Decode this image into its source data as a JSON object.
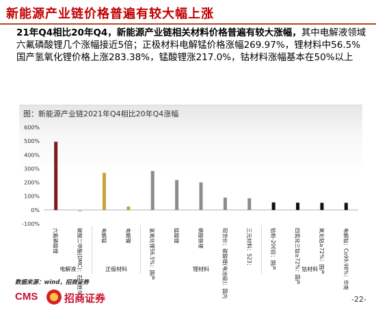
{
  "slide": {
    "title": "新能源产业链价格普遍有较大幅上涨",
    "summary_bold": "21年Q4相比20年Q4，新能源产业链相关材料价格普遍有较大涨幅，",
    "summary_rest": "其中电解液领域六氟磷酸锂几个涨幅接近5倍；正极材料电解锰价格涨幅269.97%，锂材料中56.5%国产氢氧化锂价格上涨283.38%，锰酸锂涨217.0%，钴材料涨幅基本在50%以上",
    "source": "数据来源：wind，招商证券",
    "logo_text": "CMS",
    "logo_cn": "招商证券",
    "page_number": "-22-"
  },
  "chart_data": {
    "type": "bar",
    "title": "图：新能源产业链2021年Q4相比20年Q4涨幅",
    "ylim": [
      -100,
      600
    ],
    "yticks": [
      -100,
      0,
      100,
      200,
      300,
      400,
      500,
      600
    ],
    "ytick_labels": [
      "-100%",
      "0%",
      "100%",
      "200%",
      "300%",
      "400%",
      "500%",
      "600%"
    ],
    "categories": [
      "六氟磷酸锂",
      "碳酸二甲酯(DMC)：石大胜华",
      "电解锰",
      "电解镍",
      "氢氧化锂56.5%：国产",
      "锰酸锂",
      "磷酸铁锂",
      "现货价：碳酸锂(电池级)：国内",
      "三元材料：523：",
      "钴粉-200目：国产",
      "四氧化三钴≥72%：国产",
      "氧化钴≥72%：国产",
      "电解钴：Co99.98%：华南"
    ],
    "values": [
      495,
      -10,
      270,
      25,
      283,
      217,
      200,
      90,
      85,
      55,
      53,
      52,
      52
    ],
    "colors": [
      "#7b1c1c",
      "#bdbdbd",
      "#c9a23c",
      "#c9a23c",
      "#8c8c8c",
      "#8c8c8c",
      "#8c8c8c",
      "#8c8c8c",
      "#8c8c8c",
      "#111111",
      "#111111",
      "#111111",
      "#111111"
    ],
    "groups": [
      {
        "label": "电解液",
        "start": 0,
        "end": 1
      },
      {
        "label": "正极材料",
        "start": 2,
        "end": 3
      },
      {
        "label": "锂材料",
        "start": 4,
        "end": 8
      },
      {
        "label": "钴材料",
        "start": 9,
        "end": 12
      }
    ]
  }
}
